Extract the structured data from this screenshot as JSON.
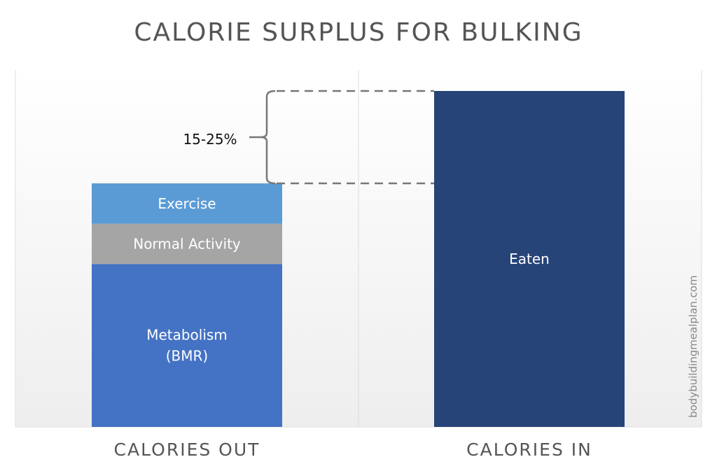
{
  "chart_data": {
    "type": "bar",
    "stacked": true,
    "title": "CALORIE SURPLUS FOR BULKING",
    "categories": [
      "CALORIES OUT",
      "CALORIES IN"
    ],
    "series": [
      {
        "name": "Metabolism (BMR)",
        "label_lines": [
          "Metabolism",
          "(BMR)"
        ],
        "category": "CALORIES OUT",
        "value": 48.5,
        "color": "#4472C4"
      },
      {
        "name": "Normal Activity",
        "label_lines": [
          "Normal Activity"
        ],
        "category": "CALORIES OUT",
        "value": 12,
        "color": "#A5A5A5"
      },
      {
        "name": "Exercise",
        "label_lines": [
          "Exercise"
        ],
        "category": "CALORIES OUT",
        "value": 12,
        "color": "#5B9BD5"
      },
      {
        "name": "Eaten",
        "label_lines": [
          "Eaten"
        ],
        "category": "CALORIES IN",
        "value": 100,
        "color": "#264478"
      }
    ],
    "value_scale": "relative (no axis printed)",
    "ylim": [
      0,
      100
    ],
    "grid": false,
    "annotation": "15-25%",
    "watermark": "bodybuildingmealplan.com"
  }
}
